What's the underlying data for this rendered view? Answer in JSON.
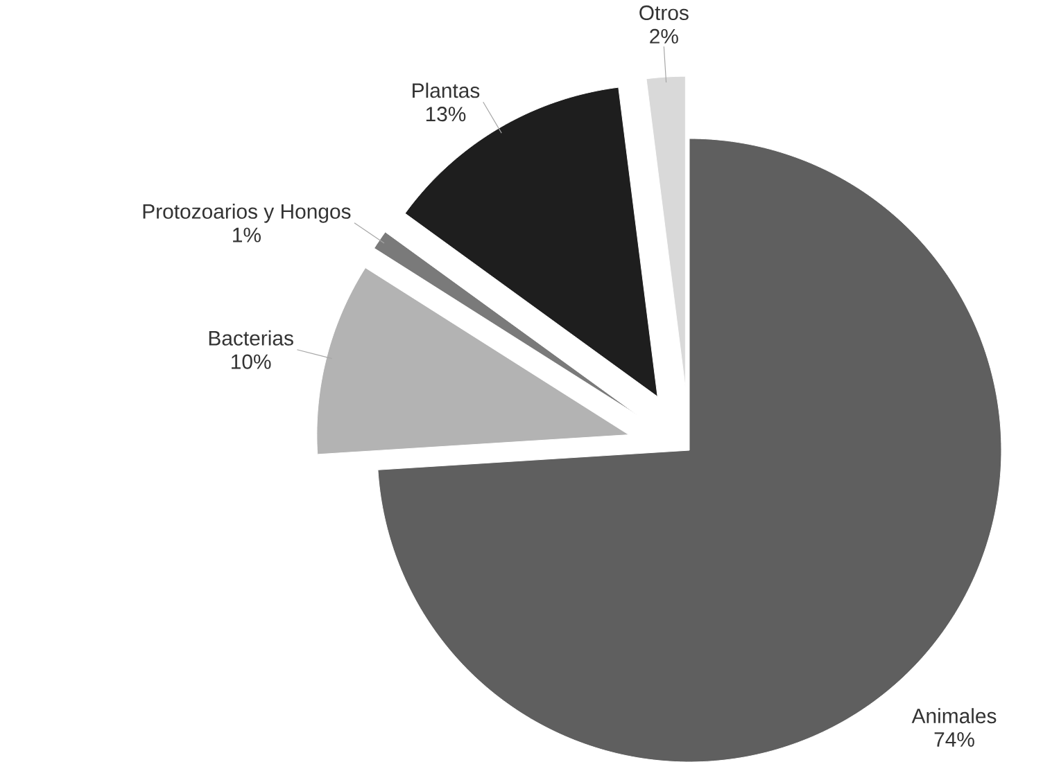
{
  "chart_data": {
    "type": "pie",
    "categories": [
      "Animales",
      "Bacterias",
      "Protozoarios y Hongos",
      "Plantas",
      "Otros"
    ],
    "values": [
      74,
      10,
      1,
      13,
      2
    ],
    "value_labels": [
      "74%",
      "10%",
      "1%",
      "13%",
      "2%"
    ],
    "colors": [
      "#5f5f5f",
      "#b3b3b3",
      "#7a7a7a",
      "#1e1e1e",
      "#d9d9d9"
    ]
  }
}
